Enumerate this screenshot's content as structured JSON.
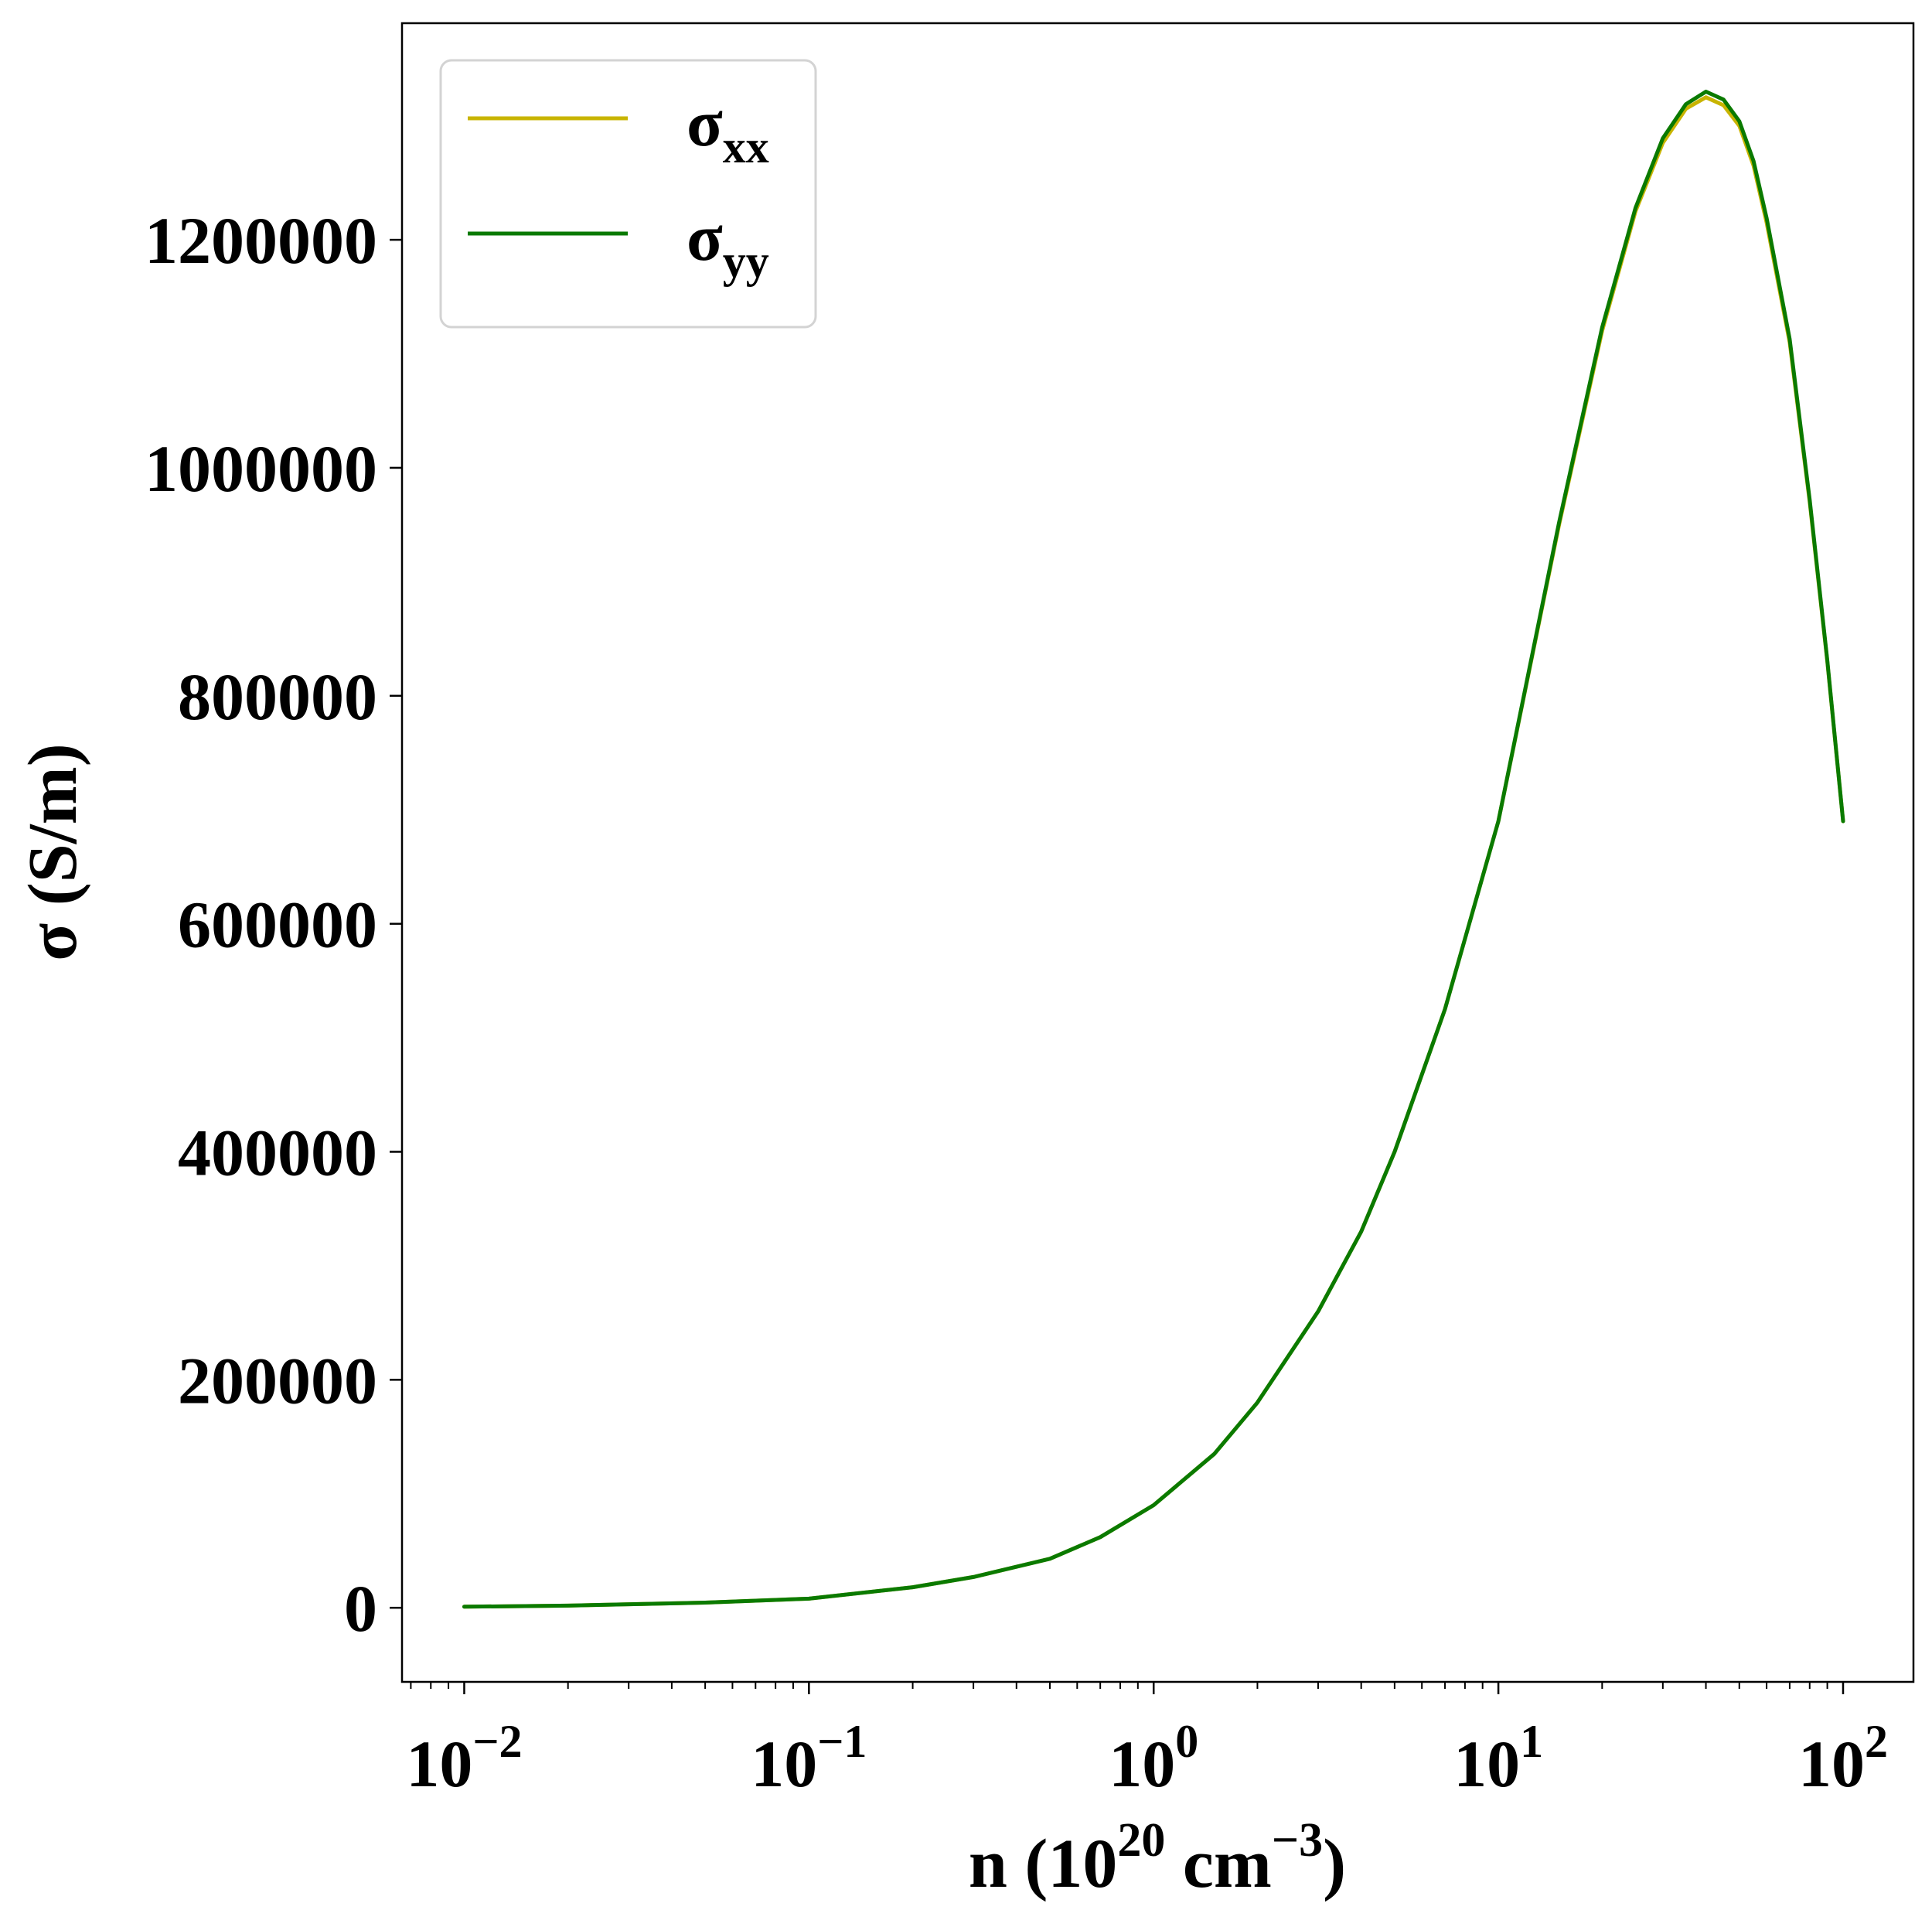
{
  "chart_data": {
    "type": "line",
    "xscale": "log",
    "xlim": [
      0.0066,
      160
    ],
    "ylim": [
      -65000,
      1390000
    ],
    "grid": false,
    "legend_position": "top-left",
    "xlabel": {
      "main": "n (10",
      "exp": "20",
      "unit": " cm",
      "unit_exp": "−3",
      "close": ")"
    },
    "ylabel": "σ (S/m)",
    "x_ticks": [
      {
        "value": 0.01,
        "base": "10",
        "exp": "−2"
      },
      {
        "value": 0.1,
        "base": "10",
        "exp": "−1"
      },
      {
        "value": 1,
        "base": "10",
        "exp": "0"
      },
      {
        "value": 10,
        "base": "10",
        "exp": "1"
      },
      {
        "value": 100,
        "base": "10",
        "exp": "2"
      }
    ],
    "y_ticks": [
      {
        "value": 0,
        "label": "0"
      },
      {
        "value": 200000,
        "label": "200000"
      },
      {
        "value": 400000,
        "label": "400000"
      },
      {
        "value": 600000,
        "label": "600000"
      },
      {
        "value": 800000,
        "label": "800000"
      },
      {
        "value": 1000000,
        "label": "1000000"
      },
      {
        "value": 1200000,
        "label": "1200000"
      }
    ],
    "series": [
      {
        "name": "σ",
        "subscript": "xx",
        "color": "#c8b400",
        "x": [
          0.01,
          0.02,
          0.05,
          0.1,
          0.2,
          0.3,
          0.5,
          0.7,
          1,
          1.5,
          2,
          3,
          4,
          5,
          7,
          10,
          15,
          20,
          25,
          30,
          35,
          40,
          45,
          50,
          55,
          60,
          70,
          80,
          90,
          100
        ],
        "y": [
          900,
          1900,
          4500,
          8000,
          18000,
          27000,
          43000,
          62000,
          90000,
          135000,
          180000,
          260000,
          330000,
          400000,
          525000,
          690000,
          950000,
          1120000,
          1225000,
          1285000,
          1315000,
          1325000,
          1318000,
          1300000,
          1265000,
          1215000,
          1110000,
          970000,
          830000,
          690000
        ]
      },
      {
        "name": "σ",
        "subscript": "yy",
        "color": "#0a7a00",
        "x": [
          0.01,
          0.02,
          0.05,
          0.1,
          0.2,
          0.3,
          0.5,
          0.7,
          1,
          1.5,
          2,
          3,
          4,
          5,
          7,
          10,
          15,
          20,
          25,
          30,
          35,
          40,
          45,
          50,
          55,
          60,
          70,
          80,
          90,
          100
        ],
        "y": [
          900,
          1900,
          4500,
          8000,
          18000,
          27000,
          43000,
          62000,
          90000,
          135000,
          180000,
          260000,
          330000,
          400000,
          525000,
          690000,
          952000,
          1123000,
          1228000,
          1289000,
          1319000,
          1330000,
          1323000,
          1304000,
          1269000,
          1219000,
          1113000,
          972000,
          831000,
          690000
        ]
      }
    ]
  }
}
